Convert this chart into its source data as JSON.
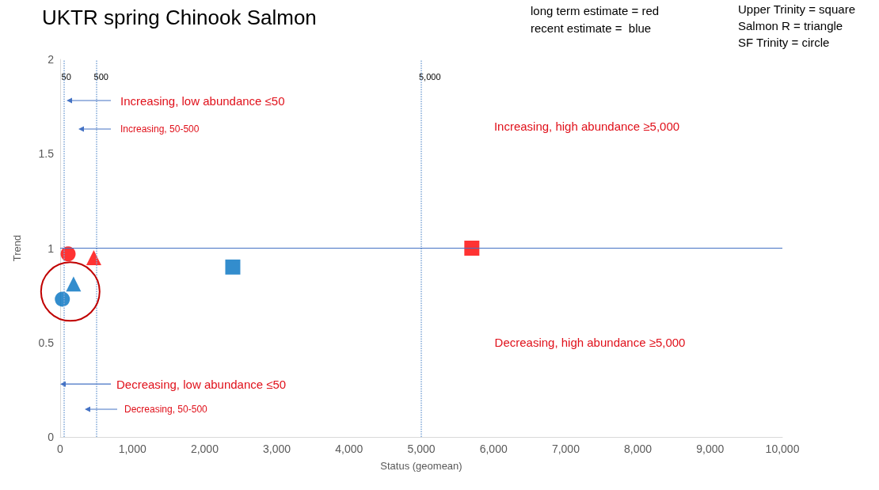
{
  "chart_data": {
    "type": "scatter",
    "title": "UKTR spring Chinook Salmon",
    "xlabel": "Status (geomean)",
    "ylabel": "Trend",
    "series": [
      {
        "marker": "square",
        "x": [
          5700,
          2390
        ],
        "values": [
          1.0,
          0.9
        ],
        "colors": [
          "#ff0000",
          "#0070c0"
        ]
      },
      {
        "marker": "triangle",
        "x": [
          465,
          185
        ],
        "values": [
          0.95,
          0.81
        ],
        "colors": [
          "#ff0000",
          "#0070c0"
        ]
      },
      {
        "marker": "circle",
        "x": [
          110,
          30
        ],
        "values": [
          0.97,
          0.73
        ],
        "colors": [
          "#ff0000",
          "#0070c0"
        ]
      }
    ],
    "xlim": [
      0,
      10000
    ],
    "xticks": [
      0,
      {
        "value": 1000,
        "label": "1,000"
      },
      {
        "value": 2000,
        "label": "2,000"
      },
      {
        "value": 3000,
        "label": "3,000"
      },
      {
        "value": 4000,
        "label": "4,000"
      },
      {
        "value": 5000,
        "label": "5,000"
      },
      {
        "value": 6000,
        "label": "6,000"
      },
      {
        "value": 7000,
        "label": "7,000"
      },
      {
        "value": 8000,
        "label": "8,000"
      },
      {
        "value": 9000,
        "label": "9,000"
      },
      {
        "value": 10000,
        "label": "10,000"
      }
    ],
    "ylim": [
      0,
      2
    ],
    "yticks": [
      0,
      0.5,
      1,
      1.5,
      2
    ],
    "grid": false,
    "ref_lines": [
      {
        "axis": "x",
        "value": 50,
        "label": "50",
        "color": "#7fa7d6",
        "line_style": "dotted"
      },
      {
        "axis": "x",
        "value": 500,
        "label": "500",
        "color": "#7fa7d6",
        "line_style": "dotted"
      },
      {
        "axis": "x",
        "value": 5000,
        "label": "5,000",
        "color": "#7fa7d6",
        "line_style": "dotted"
      },
      {
        "axis": "y",
        "value": 1,
        "color": "#4472c4",
        "line_style": "solid"
      }
    ],
    "annotations": [
      "long term estimate = red",
      "recent estimate =  blue",
      "Upper Trinity = square",
      "Salmon R = triangle",
      "SF Trinity = circle",
      "Increasing, low abundance ≤50",
      "Increasing, 50-500",
      {
        "text": "Decreasing, low abundance ≤50",
        "x": 0,
        "y": 0.28
      },
      "Decreasing, 50-500",
      "Increasing, high abundance ≥5,000",
      "Decreasing, high abundance ≥5,000"
    ]
  }
}
